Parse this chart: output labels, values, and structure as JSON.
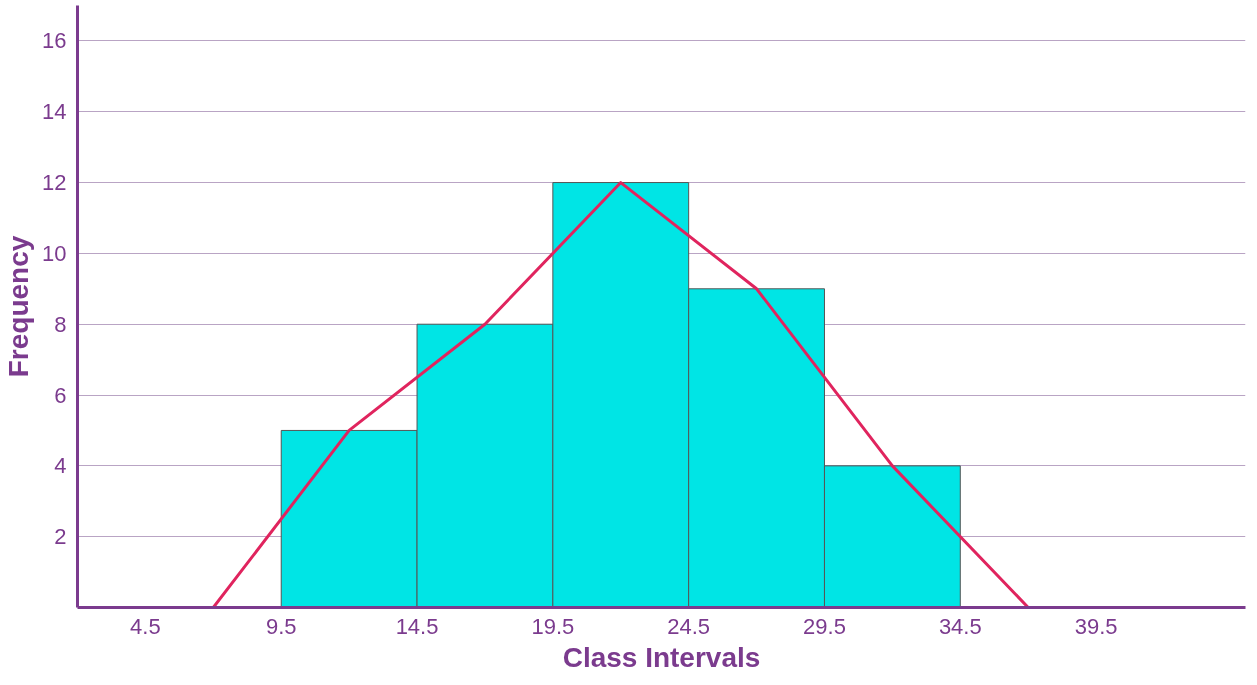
{
  "chart_data": {
    "type": "histogram",
    "xlabel": "Class Intervals",
    "ylabel": "Frequency",
    "bins": [
      9.5,
      14.5,
      19.5,
      24.5,
      29.5,
      34.5
    ],
    "values": [
      5,
      8,
      12,
      9,
      4
    ],
    "color": "#00e5e5",
    "series": [
      {
        "type": "line",
        "x": [
          7,
          12,
          17,
          22,
          27,
          32,
          37
        ],
        "values": [
          0,
          5,
          8,
          12,
          9,
          4,
          0
        ],
        "color": "#e0245e"
      }
    ],
    "xlim": [
      2,
      45
    ],
    "ylim": [
      0,
      17
    ],
    "xticks": [
      4.5,
      9.5,
      14.5,
      19.5,
      24.5,
      29.5,
      34.5,
      39.5
    ],
    "yticks": [
      2,
      4,
      6,
      8,
      10,
      12,
      14,
      16
    ],
    "grid": "y"
  }
}
